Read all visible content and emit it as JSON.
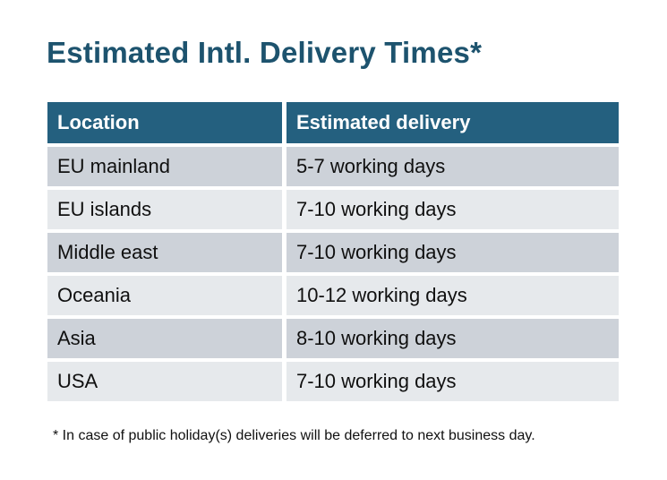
{
  "title": "Estimated Intl. Delivery Times*",
  "table": {
    "headers": [
      "Location",
      "Estimated delivery"
    ],
    "rows": [
      {
        "location": "EU mainland",
        "delivery": "5-7 working days"
      },
      {
        "location": "EU islands",
        "delivery": "7-10 working days"
      },
      {
        "location": "Middle east",
        "delivery": "7-10 working days"
      },
      {
        "location": "Oceania",
        "delivery": "10-12 working days"
      },
      {
        "location": "Asia",
        "delivery": "8-10 working days"
      },
      {
        "location": "USA",
        "delivery": "7-10 working days"
      }
    ]
  },
  "footnote": "* In case of public holiday(s) deliveries will be deferred to next business day.",
  "colors": {
    "background": "#ffffff",
    "title": "#1d536e",
    "header_bg": "#24607f",
    "header_text": "#ffffff",
    "row_odd_bg": "#cdd2d9",
    "row_even_bg": "#e6e9ec",
    "body_text": "#101010"
  }
}
